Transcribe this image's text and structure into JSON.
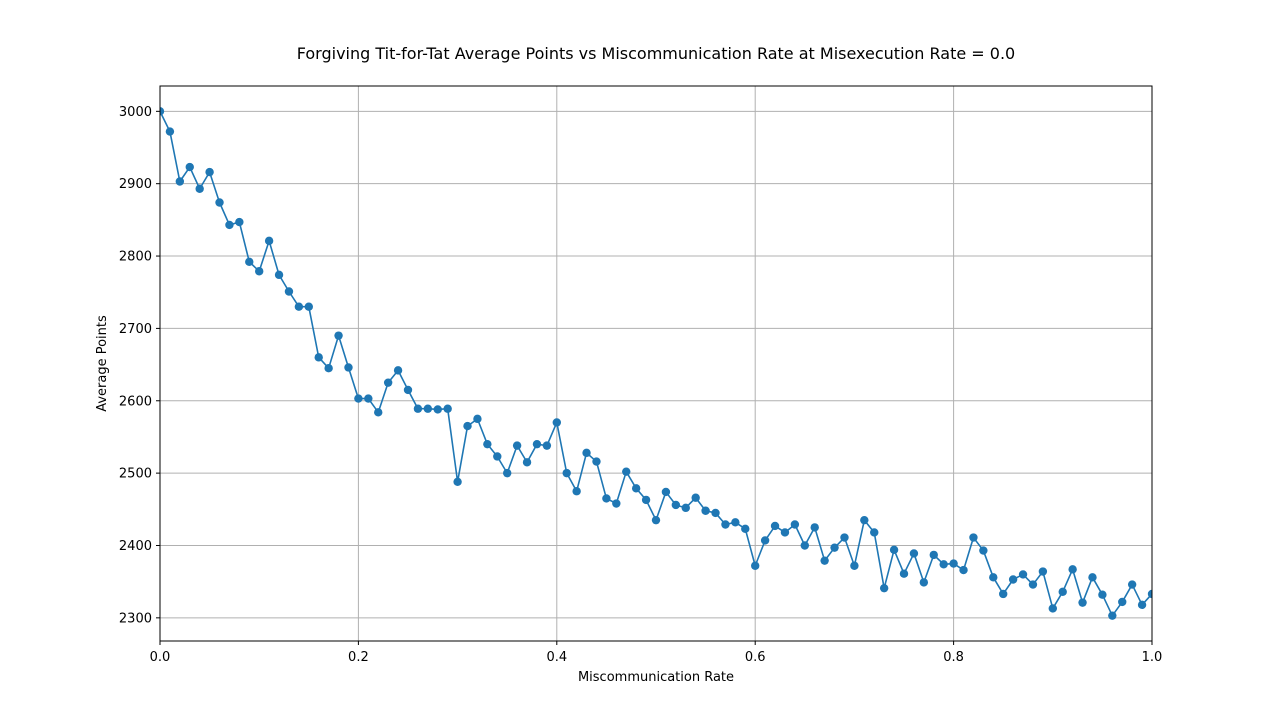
{
  "chart_data": {
    "type": "line",
    "title": "Forgiving Tit-for-Tat Average Points vs Miscommunication Rate at Misexecution Rate = 0.0",
    "xlabel": "Miscommunication Rate",
    "ylabel": "Average Points",
    "xlim": [
      0.0,
      1.0
    ],
    "ylim": [
      2268,
      3035
    ],
    "xticks": [
      0.0,
      0.2,
      0.4,
      0.6,
      0.8,
      1.0
    ],
    "xtick_labels": [
      "0.0",
      "0.2",
      "0.4",
      "0.6",
      "0.8",
      "1.0"
    ],
    "yticks": [
      2300,
      2400,
      2500,
      2600,
      2700,
      2800,
      2900,
      3000
    ],
    "ytick_labels": [
      "2300",
      "2400",
      "2500",
      "2600",
      "2700",
      "2800",
      "2900",
      "3000"
    ],
    "grid": true,
    "marker": "circle",
    "color": "#1f77b4",
    "series": [
      {
        "x": [
          0.0,
          0.01,
          0.02,
          0.03,
          0.04,
          0.05,
          0.06,
          0.07,
          0.08,
          0.09,
          0.1,
          0.11,
          0.12,
          0.13,
          0.14,
          0.15,
          0.16,
          0.17,
          0.18,
          0.19,
          0.2,
          0.21,
          0.22,
          0.23,
          0.24,
          0.25,
          0.26,
          0.27,
          0.28,
          0.29,
          0.3,
          0.31,
          0.32,
          0.33,
          0.34,
          0.35,
          0.36,
          0.37,
          0.38,
          0.39,
          0.4,
          0.41,
          0.42,
          0.43,
          0.44,
          0.45,
          0.46,
          0.47,
          0.48,
          0.49,
          0.5,
          0.51,
          0.52,
          0.53,
          0.54,
          0.55,
          0.56,
          0.57,
          0.58,
          0.59,
          0.6,
          0.61,
          0.62,
          0.63,
          0.64,
          0.65,
          0.66,
          0.67,
          0.68,
          0.69,
          0.7,
          0.71,
          0.72,
          0.73,
          0.74,
          0.75,
          0.76,
          0.77,
          0.78,
          0.79,
          0.8,
          0.81,
          0.82,
          0.83,
          0.84,
          0.85,
          0.86,
          0.87,
          0.88,
          0.89,
          0.9,
          0.91,
          0.92,
          0.93,
          0.94,
          0.95,
          0.96,
          0.97,
          0.98,
          0.99,
          1.0
        ],
        "y": [
          3000,
          2972,
          2903,
          2923,
          2893,
          2916,
          2874,
          2843,
          2847,
          2792,
          2779,
          2821,
          2774,
          2751,
          2730,
          2730,
          2660,
          2645,
          2690,
          2646,
          2603,
          2603,
          2584,
          2625,
          2642,
          2615,
          2589,
          2589,
          2588,
          2589,
          2488,
          2565,
          2575,
          2540,
          2523,
          2500,
          2538,
          2515,
          2540,
          2538,
          2570,
          2500,
          2475,
          2528,
          2516,
          2465,
          2458,
          2502,
          2479,
          2463,
          2435,
          2474,
          2456,
          2452,
          2466,
          2448,
          2445,
          2429,
          2432,
          2423,
          2372,
          2407,
          2427,
          2418,
          2429,
          2400,
          2425,
          2379,
          2397,
          2411,
          2372,
          2435,
          2418,
          2341,
          2394,
          2361,
          2389,
          2349,
          2387,
          2374,
          2375,
          2366,
          2411,
          2393,
          2356,
          2333,
          2353,
          2360,
          2346,
          2364,
          2313,
          2336,
          2367,
          2321,
          2356,
          2332,
          2303,
          2322,
          2346,
          2318,
          2333
        ]
      }
    ]
  }
}
